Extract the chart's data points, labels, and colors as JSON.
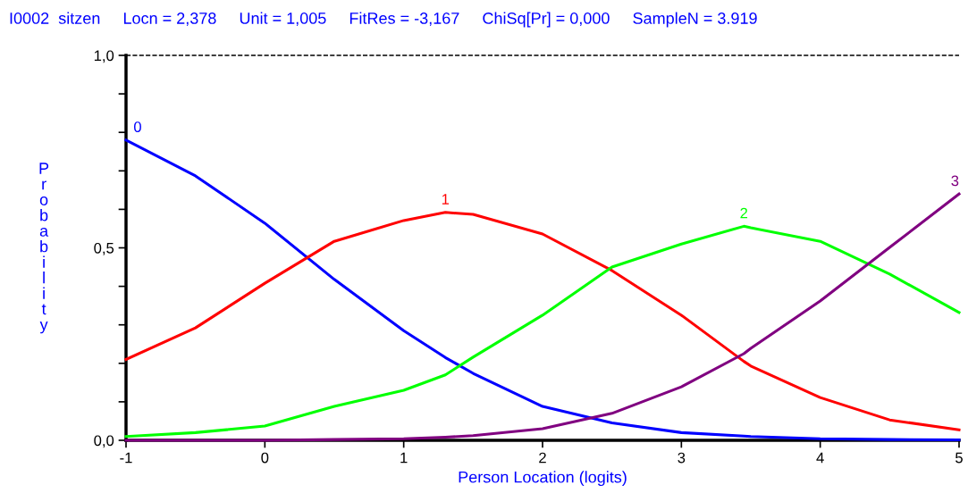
{
  "chart_data": {
    "type": "line",
    "title": "I0002  sitzen     Locn = 2,378     Unit = 1,005     FitRes = -3,167     ChiSq[Pr] = 0,000     SampleN = 3.919",
    "xlabel": "Person Location (logits)",
    "ylabel": "Probability",
    "x": [
      -1,
      -0.5,
      0,
      0.5,
      1,
      1.3,
      1.5,
      2,
      2.5,
      3,
      3.45,
      3.5,
      4,
      4.5,
      5
    ],
    "series": [
      {
        "name": "0",
        "color": "#0000ff",
        "values": [
          0.78,
          0.687,
          0.564,
          0.418,
          0.285,
          0.215,
          0.174,
          0.088,
          0.045,
          0.02,
          0.011,
          0.01,
          0.004,
          0.002,
          0.001
        ]
      },
      {
        "name": "1",
        "color": "#ff0000",
        "values": [
          0.21,
          0.292,
          0.408,
          0.517,
          0.571,
          0.592,
          0.587,
          0.536,
          0.441,
          0.325,
          0.205,
          0.193,
          0.111,
          0.053,
          0.027
        ]
      },
      {
        "name": "2",
        "color": "#00ff00",
        "values": [
          0.01,
          0.02,
          0.037,
          0.088,
          0.13,
          0.17,
          0.216,
          0.325,
          0.45,
          0.51,
          0.556,
          0.552,
          0.517,
          0.432,
          0.332
        ]
      },
      {
        "name": "3",
        "color": "#800080",
        "values": [
          0,
          0,
          0,
          0.002,
          0.004,
          0.008,
          0.012,
          0.03,
          0.07,
          0.139,
          0.225,
          0.239,
          0.362,
          0.501,
          0.64
        ]
      }
    ],
    "xlim": [
      -1,
      5
    ],
    "xticks": [
      -1,
      0,
      1,
      2,
      3,
      4,
      5
    ],
    "ylim": [
      0,
      1
    ],
    "yticks": [
      {
        "value": 0,
        "label": "0,0"
      },
      {
        "value": 0.1,
        "label": null
      },
      {
        "value": 0.2,
        "label": null
      },
      {
        "value": 0.3,
        "label": null
      },
      {
        "value": 0.4,
        "label": null
      },
      {
        "value": 0.5,
        "label": "0,5"
      },
      {
        "value": 0.6,
        "label": null
      },
      {
        "value": 0.7,
        "label": null
      },
      {
        "value": 0.8,
        "label": null
      },
      {
        "value": 0.9,
        "label": null
      },
      {
        "value": 1,
        "label": "1,0"
      }
    ],
    "ref_lines": [
      {
        "axis": "y",
        "value": 1,
        "color": "#000000",
        "line_style": "dashed"
      }
    ],
    "grid": false,
    "legend": false,
    "marker": "none",
    "line_style": "solid"
  }
}
